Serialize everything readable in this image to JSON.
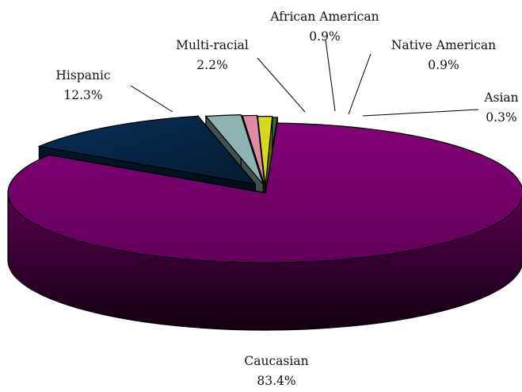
{
  "chart_data": {
    "type": "pie",
    "title": "",
    "three_d": true,
    "exploded": true,
    "slices": [
      {
        "label": "Caucasian",
        "value": 83.4,
        "value_label": "83.4%",
        "color": "#7a0070"
      },
      {
        "label": "Hispanic",
        "value": 12.3,
        "value_label": "12.3%",
        "color": "#0b2a4a"
      },
      {
        "label": "Multi-racial",
        "value": 2.2,
        "value_label": "2.2%",
        "color": "#8fb3b0"
      },
      {
        "label": "African American",
        "value": 0.9,
        "value_label": "0.9%",
        "color": "#e08aa8"
      },
      {
        "label": "Native American",
        "value": 0.9,
        "value_label": "0.9%",
        "color": "#d8d81a"
      },
      {
        "label": "Asian",
        "value": 0.3,
        "value_label": "0.3%",
        "color": "#3a6a3a"
      }
    ]
  }
}
